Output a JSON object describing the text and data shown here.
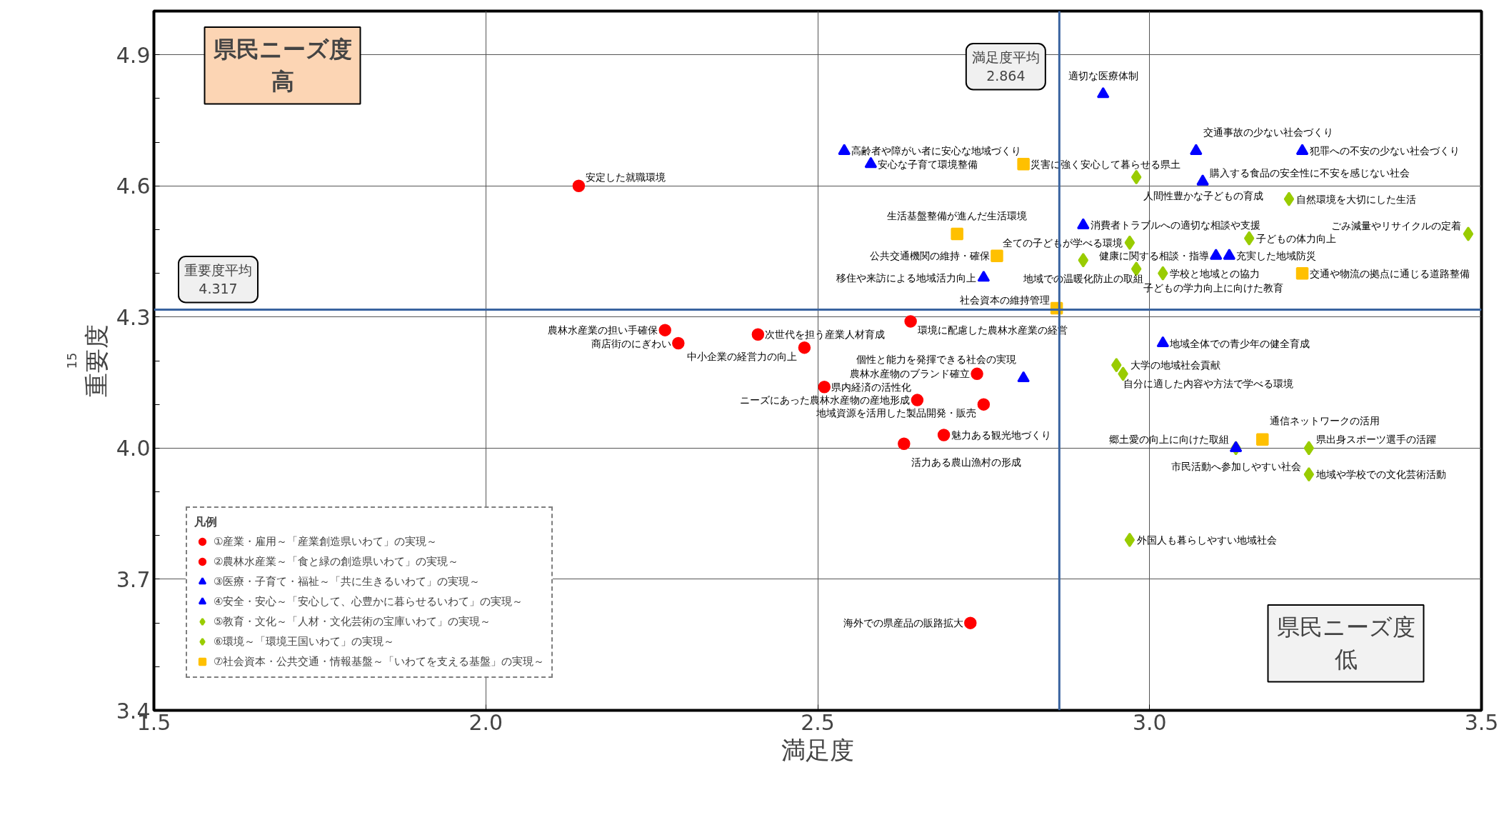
{
  "chart_data": {
    "type": "scatter",
    "xlabel": "満足度",
    "ylabel": "重要度",
    "legend_title": "凡例",
    "xlim": [
      1.5,
      3.5
    ],
    "ylim": [
      3.4,
      5.0
    ],
    "xticks": [
      1.5,
      {
        "value": 2,
        "label": "2.0"
      },
      2.5,
      {
        "value": 3,
        "label": "3.0"
      },
      3.5
    ],
    "yticks": [
      3.4,
      {
        "value": 3.5,
        "label": null
      },
      {
        "value": 3.6,
        "label": null
      },
      3.7,
      {
        "value": 3.8,
        "label": null
      },
      {
        "value": 3.9,
        "label": null
      },
      {
        "value": 4,
        "label": "4.0"
      },
      {
        "value": 4.1,
        "label": null
      },
      {
        "value": 4.2,
        "label": null
      },
      4.3,
      {
        "value": 4.4,
        "label": null
      },
      {
        "value": 4.5,
        "label": null
      },
      4.6,
      {
        "value": 4.7,
        "label": null
      },
      {
        "value": 4.8,
        "label": null
      },
      4.9,
      {
        "value": 5.0,
        "label": null
      }
    ],
    "grid": true,
    "legend": "bottom left",
    "series": [
      {
        "name": "①産業・雇用～「産業創造県いわて」の実現～",
        "color": "#ff0000",
        "marker": "circle",
        "x": [
          2.14,
          2.41,
          2.29,
          2.48,
          2.51,
          2.75,
          2.69,
          2.73
        ],
        "values": [
          4.6,
          4.26,
          4.24,
          4.23,
          4.14,
          4.1,
          4.03,
          3.6
        ]
      },
      {
        "name": "②農林水産業～「食と緑の創造県いわて」の実現～",
        "color": "#ff0000",
        "marker": "circle",
        "x": [
          2.27,
          2.64,
          2.74,
          2.65,
          2.63
        ],
        "values": [
          4.27,
          4.29,
          4.17,
          4.11,
          4.01
        ]
      },
      {
        "name": "③医療・子育て・福祉～「共に生きるいわて」の実現～",
        "color": "#0000ff",
        "marker": "triangle",
        "x": [
          2.54,
          2.58,
          2.93,
          3.1
        ],
        "values": [
          4.68,
          4.65,
          4.81,
          4.44
        ]
      },
      {
        "name": "④安全・安心～「安心して、心豊かに暮らせるいわて」の実現～",
        "color": "#0000ff",
        "marker": "triangle",
        "x": [
          3.07,
          3.23,
          3.08,
          2.9,
          3.12,
          2.75,
          3.02,
          2.81,
          3.13
        ],
        "values": [
          4.68,
          4.68,
          4.61,
          4.51,
          4.44,
          4.39,
          4.24,
          4.16,
          4.0
        ]
      },
      {
        "name": "⑤教育・文化～「人材・文化芸術の宝庫いわて」の実現～",
        "color": "#99cc00",
        "marker": "diamond",
        "x": [
          2.98,
          2.97,
          3.15,
          2.98,
          3.02,
          2.95,
          2.96,
          3.13,
          3.24,
          3.24,
          2.97
        ],
        "values": [
          4.62,
          4.47,
          4.48,
          4.41,
          4.4,
          4.19,
          4.17,
          4.0,
          4.0,
          3.94,
          3.79
        ]
      },
      {
        "name": "⑥環境～「環境王国いわて」の実現～",
        "color": "#99cc00",
        "marker": "diamond",
        "x": [
          3.21,
          3.48,
          2.9
        ],
        "values": [
          4.57,
          4.49,
          4.43
        ]
      },
      {
        "name": "⑦社会資本・公共交通・情報基盤～「いわてを支える基盤」の実現～",
        "color": "#ffc000",
        "marker": "square",
        "x": [
          2.81,
          2.71,
          2.77,
          2.86,
          3.23,
          3.17
        ],
        "values": [
          4.65,
          4.49,
          4.44,
          4.32,
          4.4,
          4.02
        ]
      }
    ],
    "ref_lines": [
      {
        "axis": "x",
        "value": 2.864,
        "label": "満足度平均2.864",
        "color": "#3a64a0"
      },
      {
        "axis": "y",
        "value": 4.317,
        "label": "重要度平均4.317",
        "color": "#3a64a0"
      }
    ],
    "annotations": [
      "県民ニーズ度高",
      "県民ニーズ度低",
      "15",
      {
        "text": "安定した就職環境",
        "x": 2.14,
        "y": 4.6
      },
      {
        "text": "次世代を担う産業人材育成",
        "x": 2.41,
        "y": 4.26
      },
      {
        "text": "商店街のにぎわい",
        "x": 2.29,
        "y": 4.24
      },
      {
        "text": "中小企業の経営力の向上",
        "x": 2.48,
        "y": 4.23
      },
      {
        "text": "県内経済の活性化",
        "x": 2.51,
        "y": 4.14
      },
      {
        "text": "地域資源を活用した製品開発・販売",
        "x": 2.75,
        "y": 4.1
      },
      {
        "text": "魅力ある観光地づくり",
        "x": 2.69,
        "y": 4.03
      },
      {
        "text": "海外での県産品の販路拡大",
        "x": 2.73,
        "y": 3.6
      },
      {
        "text": "農林水産業の担い手確保",
        "x": 2.27,
        "y": 4.27
      },
      {
        "text": "環境に配慮した農林水産業の経営",
        "x": 2.64,
        "y": 4.29
      },
      {
        "text": "農林水産物のブランド確立",
        "x": 2.74,
        "y": 4.17
      },
      {
        "text": "ニーズにあった農林水産物の産地形成",
        "x": 2.65,
        "y": 4.11
      },
      {
        "text": "活力ある農山漁村の形成",
        "x": 2.63,
        "y": 4.01
      },
      {
        "text": "高齢者や障がい者に安心な地域づくり",
        "x": 2.54,
        "y": 4.68
      },
      {
        "text": "安心な子育て環境整備",
        "x": 2.58,
        "y": 4.65
      },
      {
        "text": "適切な医療体制",
        "x": 2.93,
        "y": 4.81
      },
      {
        "text": "健康に関する相談・指導",
        "x": 3.1,
        "y": 4.44
      },
      {
        "text": "交通事故の少ない社会づくり",
        "x": 3.07,
        "y": 4.68
      },
      {
        "text": "犯罪への不安の少ない社会づくり",
        "x": 3.23,
        "y": 4.68
      },
      {
        "text": "購入する食品の安全性に不安を感じない社会",
        "x": 3.08,
        "y": 4.61
      },
      {
        "text": "消費者トラブルへの適切な相談や支援",
        "x": 2.9,
        "y": 4.51
      },
      {
        "text": "充実した地域防災",
        "x": 3.12,
        "y": 4.44
      },
      {
        "text": "移住や来訪による地域活力向上",
        "x": 2.75,
        "y": 4.39
      },
      {
        "text": "地域全体での青少年の健全育成",
        "x": 3.02,
        "y": 4.24
      },
      {
        "text": "個性と能力を発揮できる社会の実現",
        "x": 2.81,
        "y": 4.16
      },
      {
        "text": "市民活動へ参加しやすい社会",
        "x": 3.13,
        "y": 4.0
      },
      {
        "text": "人間性豊かな子どもの育成",
        "x": 2.98,
        "y": 4.62
      },
      {
        "text": "全ての子どもが学べる環境",
        "x": 2.97,
        "y": 4.47
      },
      {
        "text": "子どもの体力向上",
        "x": 3.15,
        "y": 4.48
      },
      {
        "text": "子どもの学力向上に向けた教育",
        "x": 2.98,
        "y": 4.41
      },
      {
        "text": "学校と地域との協力",
        "x": 3.02,
        "y": 4.4
      },
      {
        "text": "自分に適した内容や方法で学べる環境",
        "x": 2.95,
        "y": 4.19
      },
      {
        "text": "大学の地域社会貢献",
        "x": 2.96,
        "y": 4.17
      },
      {
        "text": "郷土愛の向上に向けた取組",
        "x": 3.13,
        "y": 4.0
      },
      {
        "text": "県出身スポーツ選手の活躍",
        "x": 3.24,
        "y": 4.0
      },
      {
        "text": "地域や学校での文化芸術活動",
        "x": 3.24,
        "y": 3.94
      },
      {
        "text": "外国人も暮らしやすい地域社会",
        "x": 2.97,
        "y": 3.79
      },
      {
        "text": "自然環境を大切にした生活",
        "x": 3.21,
        "y": 4.57
      },
      {
        "text": "ごみ減量やリサイクルの定着",
        "x": 3.48,
        "y": 4.49
      },
      {
        "text": "地域での温暖化防止の取組",
        "x": 2.9,
        "y": 4.43
      },
      {
        "text": "災害に強く安心して暮らせる県土",
        "x": 2.81,
        "y": 4.65
      },
      {
        "text": "生活基盤整備が進んだ生活環境",
        "x": 2.71,
        "y": 4.49
      },
      {
        "text": "公共交通機関の維持・確保",
        "x": 2.77,
        "y": 4.44
      },
      {
        "text": "社会資本の維持管理",
        "x": 2.86,
        "y": 4.32
      },
      {
        "text": "交通や物流の拠点に通じる道路整備",
        "x": 3.23,
        "y": 4.4
      },
      {
        "text": "通信ネットワークの活用",
        "x": 3.17,
        "y": 4.02
      }
    ]
  }
}
